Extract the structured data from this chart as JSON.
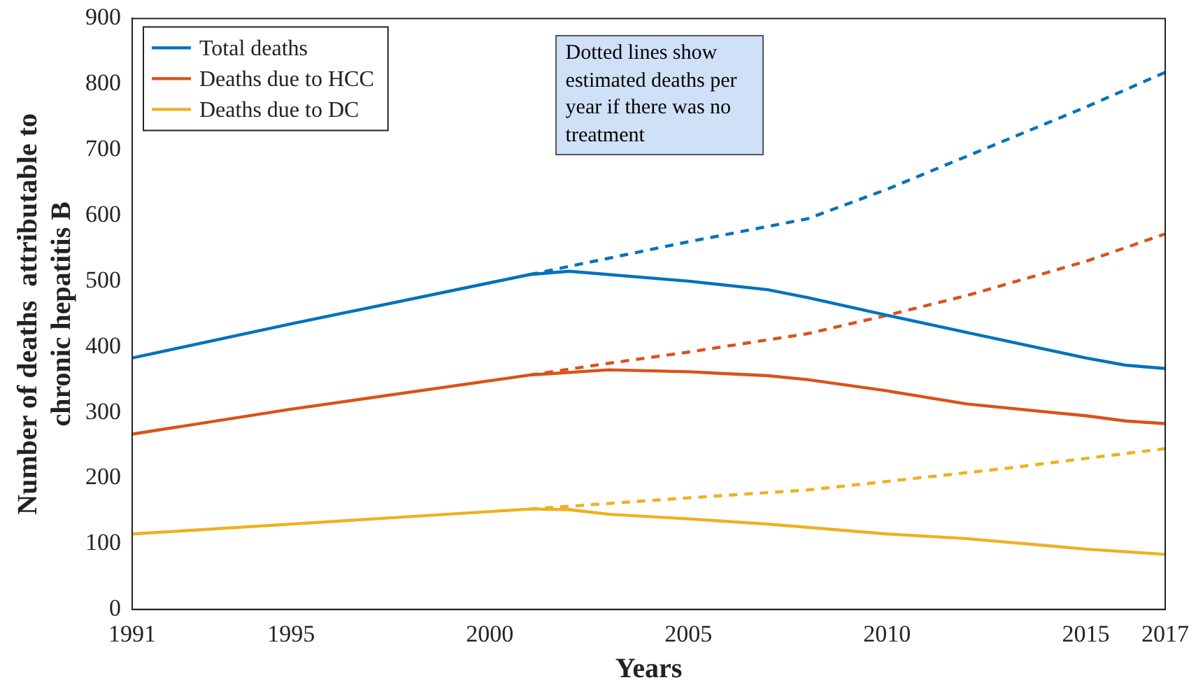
{
  "chart_data": {
    "type": "line",
    "xlabel": "Years",
    "ylabel": "Number of deaths  attributable to chronic hepatitis B",
    "xlim": [
      1991,
      2017
    ],
    "xticks": [
      1991,
      1995,
      2000,
      2005,
      2010,
      2015,
      2017
    ],
    "ylim": [
      0,
      900
    ],
    "yticks": [
      0,
      100,
      200,
      300,
      400,
      500,
      600,
      700,
      800,
      900
    ],
    "grid": false,
    "legend": "top left",
    "marker": "none",
    "annotations": [
      "Dotted lines show estimated deaths per year if there was no treatment"
    ],
    "series": [
      {
        "name": "Total deaths",
        "color": "#0072bd",
        "x": [
          1991,
          1995,
          2001,
          2002,
          2005,
          2007,
          2008,
          2010,
          2012,
          2015,
          2016,
          2017
        ],
        "values": [
          383,
          435,
          510,
          515,
          500,
          487,
          475,
          448,
          422,
          383,
          372,
          367
        ]
      },
      {
        "name": "Deaths due to HCC",
        "color": "#d95319",
        "x": [
          1991,
          1995,
          2001,
          2003,
          2005,
          2007,
          2008,
          2010,
          2012,
          2015,
          2016,
          2017
        ],
        "values": [
          267,
          305,
          357,
          365,
          362,
          356,
          350,
          333,
          313,
          295,
          287,
          283
        ]
      },
      {
        "name": "Deaths due to DC",
        "color": "#edb120",
        "x": [
          1991,
          1995,
          2001,
          2002,
          2003,
          2005,
          2007,
          2010,
          2012,
          2015,
          2017
        ],
        "values": [
          115,
          130,
          153,
          152,
          145,
          138,
          130,
          115,
          108,
          92,
          84
        ]
      },
      {
        "color": "#0072bd",
        "line_style": "dashed",
        "x": [
          2001,
          2003,
          2005,
          2008,
          2010,
          2013,
          2015,
          2017
        ],
        "values": [
          510,
          535,
          560,
          595,
          640,
          715,
          765,
          818
        ]
      },
      {
        "color": "#d95319",
        "line_style": "dashed",
        "x": [
          2001,
          2003,
          2005,
          2008,
          2010,
          2012,
          2015,
          2017
        ],
        "values": [
          357,
          375,
          392,
          420,
          448,
          478,
          530,
          572
        ]
      },
      {
        "color": "#edb120",
        "line_style": "dashed",
        "x": [
          2001,
          2005,
          2008,
          2010,
          2013,
          2015,
          2017
        ],
        "values": [
          153,
          170,
          182,
          195,
          215,
          230,
          245
        ]
      }
    ]
  }
}
